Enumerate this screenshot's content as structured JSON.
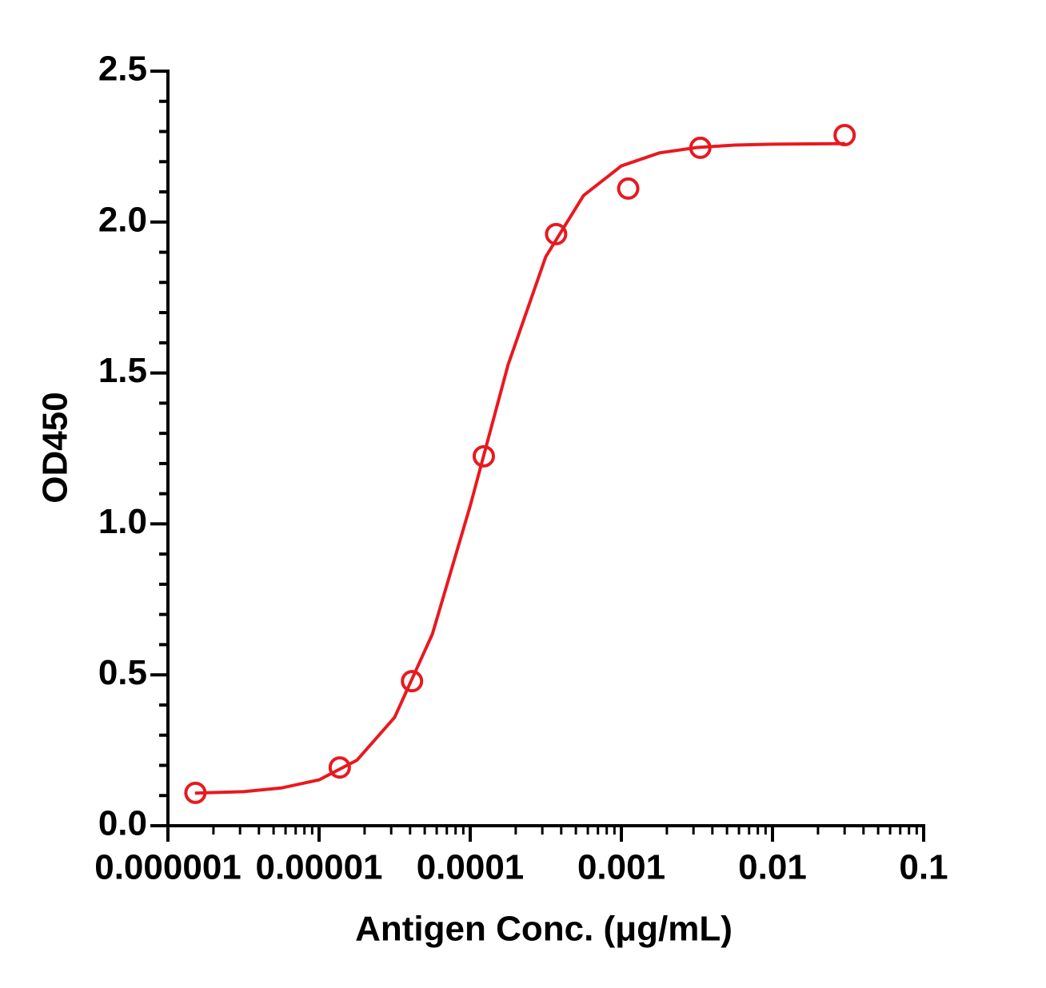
{
  "chart_data": {
    "type": "scatter",
    "xlabel": "Antigen Conc. (μg/mL)",
    "ylabel": "OD450",
    "xscale": "log",
    "color": "#e8191f",
    "xlim": [
      1e-06,
      0.1
    ],
    "ylim": [
      0,
      2.5
    ],
    "xticks": [
      1e-06,
      1e-05,
      0.0001,
      0.001,
      0.01,
      0.1
    ],
    "yticks": [
      {
        "value": 0,
        "label": "0.0"
      },
      0.5,
      {
        "value": 1,
        "label": "1.0"
      },
      1.5,
      {
        "value": 2,
        "label": "2.0"
      },
      2.5
    ],
    "xminorticks": [
      2e-06,
      3e-06,
      4e-06,
      5e-06,
      6e-06,
      7e-06,
      8e-06,
      9e-06,
      2e-05,
      3e-05,
      4e-05,
      5e-05,
      6e-05,
      7e-05,
      8e-05,
      9e-05,
      0.0002,
      0.0003,
      0.0004,
      0.0005,
      0.0006,
      0.0007,
      0.0008,
      0.0009,
      0.002,
      0.003,
      0.004,
      0.005,
      0.006,
      0.007,
      0.008,
      0.009,
      0.02,
      0.03,
      0.04,
      0.05,
      0.06,
      0.07,
      0.08,
      0.09
    ],
    "yminorticks": [
      0.1,
      0.2,
      0.3,
      0.4,
      0.6,
      0.7,
      0.8,
      0.9,
      1.1,
      1.2,
      1.3,
      1.4,
      1.6,
      1.7,
      1.8,
      1.9,
      2.1,
      2.2,
      2.3,
      2.4
    ],
    "x": [
      1.52e-06,
      1.37e-05,
      4.12e-05,
      0.000123,
      0.00037,
      0.00111,
      0.00333,
      0.03
    ],
    "values": [
      0.109,
      0.193,
      0.479,
      1.224,
      1.96,
      2.111,
      2.246,
      2.288
    ],
    "fit": {
      "type": "line",
      "x": [
        1.51e-06,
        3.16e-06,
        5.62e-06,
        1e-05,
        1.78e-05,
        3.16e-05,
        5.62e-05,
        0.0001,
        0.000178,
        0.000316,
        0.000562,
        0.001,
        0.00178,
        0.00316,
        0.00562,
        0.01,
        0.0178,
        0.0302
      ],
      "values": [
        0.108,
        0.113,
        0.125,
        0.152,
        0.217,
        0.359,
        0.635,
        1.06,
        1.527,
        1.885,
        2.088,
        2.186,
        2.229,
        2.247,
        2.255,
        2.258,
        2.259,
        2.26
      ]
    }
  }
}
